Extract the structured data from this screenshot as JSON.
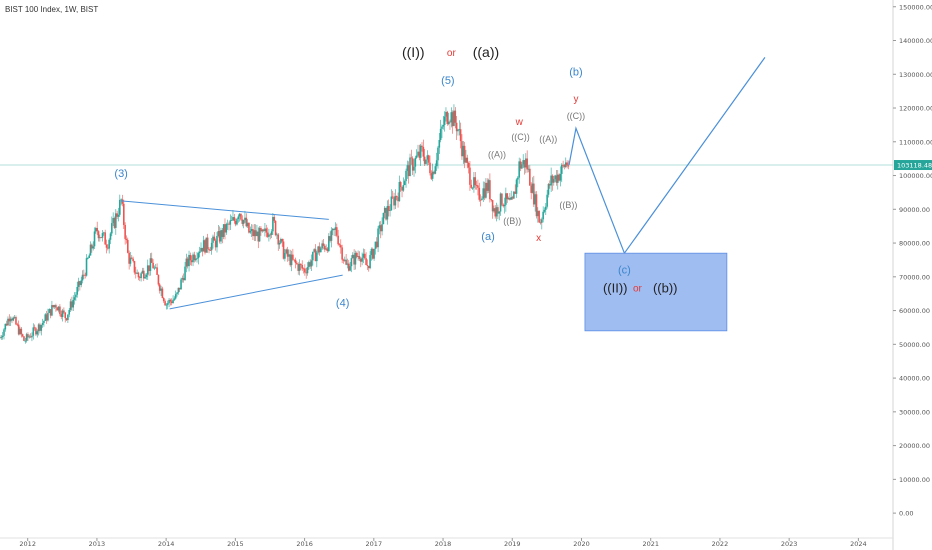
{
  "header": {
    "title": "BIST 100 Index, 1W, BIST"
  },
  "colors": {
    "up": "#26a69a",
    "down": "#ef5350",
    "wave": "#4a90d9",
    "box": "#8fb1ee",
    "box_border": "#5b8de6",
    "price_line": "#b2dfdb",
    "label_blue": "#3a86cc",
    "label_red": "#e53935",
    "label_gray": "#777777",
    "label_dark": "#222222"
  },
  "chart_data": {
    "type": "candlestick",
    "title": "BIST 100 Index, 1W, BIST",
    "timeframe": "1W",
    "y_axis_side": "right",
    "ylim": [
      -5000,
      152000
    ],
    "y_ticks": [
      0,
      10000,
      20000,
      30000,
      40000,
      50000,
      60000,
      70000,
      80000,
      90000,
      100000,
      110000,
      120000,
      130000,
      140000,
      150000
    ],
    "y_tick_labels": [
      "0.00",
      "10000.00",
      "20000.00",
      "30000.00",
      "40000.00",
      "50000.00",
      "60000.00",
      "70000.00",
      "80000.00",
      "90000.00",
      "100000.00",
      "110000.00",
      "120000.00",
      "130000.00",
      "140000.00",
      "150000.00"
    ],
    "x_range": [
      2011.6,
      2024.5
    ],
    "x_ticks": [
      2012,
      2013,
      2014,
      2015,
      2016,
      2017,
      2018,
      2019,
      2020,
      2021,
      2022,
      2023,
      2024
    ],
    "x_tick_labels": [
      "2012",
      "2013",
      "2014",
      "2015",
      "2016",
      "2017",
      "2018",
      "2019",
      "2020",
      "2021",
      "2022",
      "2023",
      "2024"
    ],
    "current_price": 103118.48,
    "current_price_label": "103118.48",
    "price_path": [
      [
        2011.6,
        52000
      ],
      [
        2011.75,
        59000
      ],
      [
        2011.95,
        51000
      ],
      [
        2012.2,
        56000
      ],
      [
        2012.4,
        62000
      ],
      [
        2012.55,
        58000
      ],
      [
        2012.8,
        70000
      ],
      [
        2013.0,
        84000
      ],
      [
        2013.15,
        80000
      ],
      [
        2013.35,
        92500
      ],
      [
        2013.45,
        76000
      ],
      [
        2013.6,
        70000
      ],
      [
        2013.8,
        74000
      ],
      [
        2014.0,
        62000
      ],
      [
        2014.15,
        64000
      ],
      [
        2014.3,
        74000
      ],
      [
        2014.5,
        79000
      ],
      [
        2014.7,
        80000
      ],
      [
        2014.85,
        84000
      ],
      [
        2015.0,
        87000
      ],
      [
        2015.05,
        90000
      ],
      [
        2015.2,
        83000
      ],
      [
        2015.4,
        82000
      ],
      [
        2015.55,
        86000
      ],
      [
        2015.7,
        77000
      ],
      [
        2015.85,
        74000
      ],
      [
        2016.0,
        72000
      ],
      [
        2016.2,
        78000
      ],
      [
        2016.35,
        80000
      ],
      [
        2016.45,
        84000
      ],
      [
        2016.6,
        73000
      ],
      [
        2016.8,
        77000
      ],
      [
        2016.9,
        73000
      ],
      [
        2017.0,
        78000
      ],
      [
        2017.15,
        88000
      ],
      [
        2017.35,
        95000
      ],
      [
        2017.5,
        102000
      ],
      [
        2017.7,
        107000
      ],
      [
        2017.85,
        101000
      ],
      [
        2018.0,
        115000
      ],
      [
        2018.08,
        119000
      ],
      [
        2018.2,
        115000
      ],
      [
        2018.35,
        102000
      ],
      [
        2018.5,
        94000
      ],
      [
        2018.65,
        97000
      ],
      [
        2018.75,
        89000
      ],
      [
        2018.85,
        93000
      ],
      [
        2019.0,
        91000
      ],
      [
        2019.1,
        103000
      ],
      [
        2019.2,
        104000
      ],
      [
        2019.3,
        95000
      ],
      [
        2019.4,
        86000
      ],
      [
        2019.55,
        98000
      ],
      [
        2019.7,
        101000
      ],
      [
        2019.78,
        104000
      ],
      [
        2019.82,
        103118
      ]
    ],
    "wave_projection": [
      [
        2019.82,
        103118
      ],
      [
        2019.92,
        114000
      ],
      [
        2020.62,
        77000
      ],
      [
        2022.65,
        135000
      ]
    ],
    "triangle_lines": [
      {
        "from": [
          2013.35,
          92500
        ],
        "to": [
          2016.35,
          87000
        ]
      },
      {
        "from": [
          2014.05,
          60500
        ],
        "to": [
          2016.55,
          70500
        ]
      }
    ],
    "target_box": {
      "x_range": [
        2020.05,
        2022.1
      ],
      "y_range": [
        54000,
        77000
      ],
      "labels": [
        "((II))",
        "or",
        "((b))"
      ]
    },
    "annotations": [
      {
        "text": "(3)",
        "x": 2013.35,
        "y": 100500,
        "style": "blue"
      },
      {
        "text": "(4)",
        "x": 2016.55,
        "y": 62000,
        "style": "blue"
      },
      {
        "text": "(5)",
        "x": 2018.07,
        "y": 128000,
        "style": "blue"
      },
      {
        "text": "((I))",
        "x": 2017.57,
        "y": 136200,
        "style": "dark"
      },
      {
        "text": "or",
        "x": 2018.12,
        "y": 136200,
        "style": "red"
      },
      {
        "text": "((a))",
        "x": 2018.62,
        "y": 136200,
        "style": "dark"
      },
      {
        "text": "(b)",
        "x": 2019.92,
        "y": 130500,
        "style": "blue"
      },
      {
        "text": "y",
        "x": 2019.92,
        "y": 122500,
        "style": "red"
      },
      {
        "text": "((C))",
        "x": 2019.92,
        "y": 117500,
        "style": "gray"
      },
      {
        "text": "w",
        "x": 2019.1,
        "y": 115800,
        "style": "red"
      },
      {
        "text": "((C))",
        "x": 2019.12,
        "y": 111300,
        "style": "gray"
      },
      {
        "text": "((A))",
        "x": 2018.78,
        "y": 106100,
        "style": "gray"
      },
      {
        "text": "((A))",
        "x": 2019.52,
        "y": 110600,
        "style": "gray"
      },
      {
        "text": "((B))",
        "x": 2019.0,
        "y": 86400,
        "style": "gray"
      },
      {
        "text": "((B))",
        "x": 2019.81,
        "y": 91100,
        "style": "gray"
      },
      {
        "text": "(a)",
        "x": 2018.65,
        "y": 81800,
        "style": "blue"
      },
      {
        "text": "x",
        "x": 2019.38,
        "y": 81400,
        "style": "red"
      },
      {
        "text": "(c)",
        "x": 2020.62,
        "y": 71800,
        "style": "blue"
      }
    ]
  }
}
